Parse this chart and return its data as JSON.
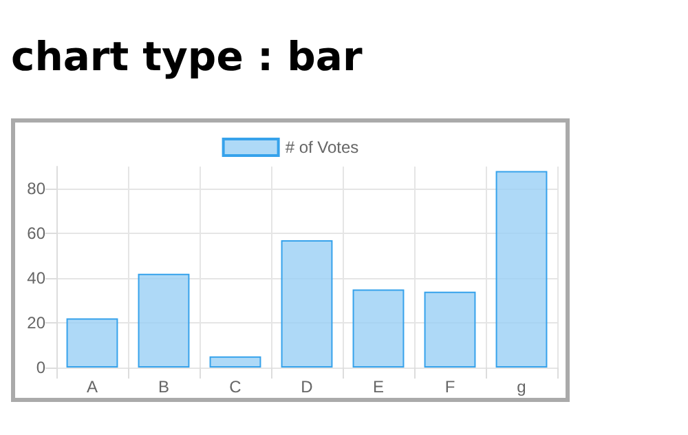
{
  "chart_data": {
    "type": "bar",
    "title": "chart type : bar",
    "categories": [
      "A",
      "B",
      "C",
      "D",
      "E",
      "F",
      "g"
    ],
    "series": [
      {
        "name": "# of Votes",
        "color": "#9ad0f5",
        "values": [
          22,
          42,
          5,
          57,
          35,
          34,
          88
        ]
      }
    ],
    "ylim": [
      0,
      90
    ],
    "yticks": [
      0,
      20,
      40,
      60,
      80
    ],
    "grid": true,
    "legend": "top"
  }
}
